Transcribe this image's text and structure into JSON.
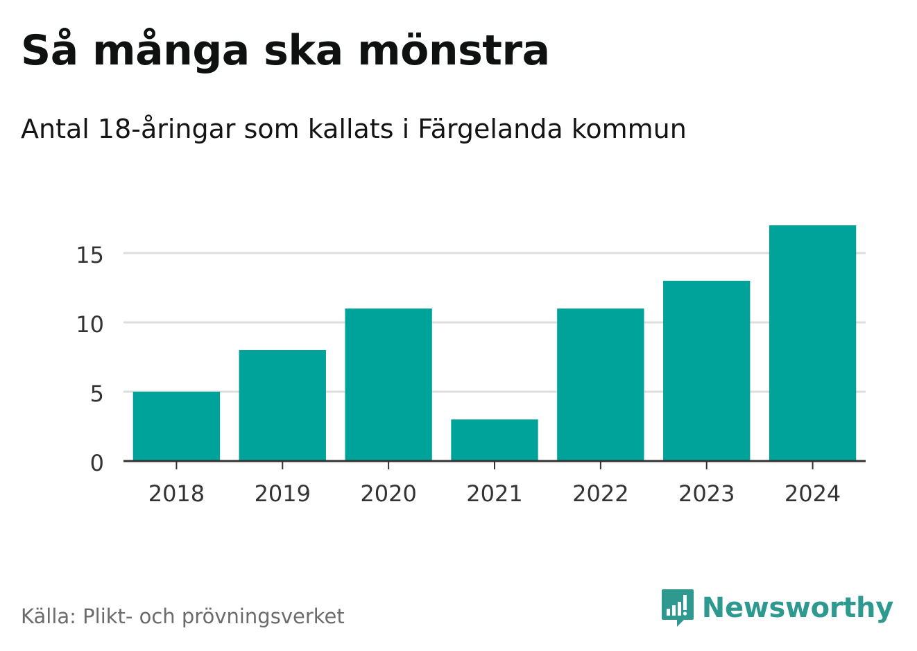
{
  "header": {
    "title": "Så många ska mönstra",
    "subtitle": "Antal 18-åringar som kallats i Färgelanda kommun"
  },
  "footer": {
    "source": "Källa: Plikt- och prövningsverket",
    "brand": "Newsworthy",
    "brand_icon": "bar-chart-speech-bubble-icon"
  },
  "colors": {
    "bar": "#00a39a",
    "grid": "#dddddd",
    "axis": "#333333",
    "tick_text": "#333333",
    "brand": "#2e9a8f"
  },
  "chart_data": {
    "type": "bar",
    "title": "Så många ska mönstra",
    "subtitle": "Antal 18-åringar som kallats i Färgelanda kommun",
    "xlabel": "",
    "ylabel": "",
    "categories": [
      "2018",
      "2019",
      "2020",
      "2021",
      "2022",
      "2023",
      "2024"
    ],
    "values": [
      5,
      8,
      11,
      3,
      11,
      13,
      17
    ],
    "ylim": [
      0,
      17
    ],
    "yticks": [
      0,
      5,
      10,
      15
    ],
    "grid": true,
    "legend": "none"
  }
}
